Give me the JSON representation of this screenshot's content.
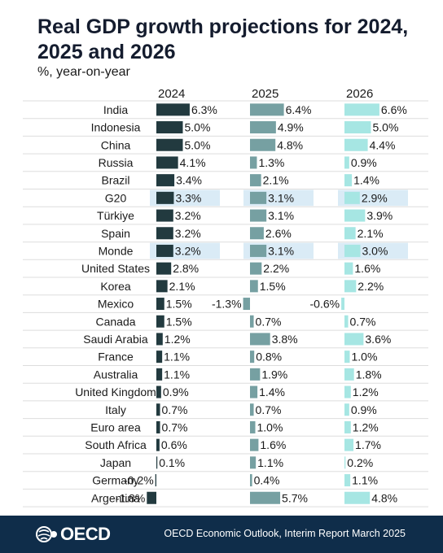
{
  "title": "Real GDP growth projections for 2024, 2025 and 2026",
  "subtitle": "%, year-on-year",
  "footer": {
    "logo_text": "OECD",
    "source": "OECD Economic Outlook, Interim Report March 2025"
  },
  "colors": {
    "series_2024": "#223a3f",
    "series_2025": "#76a0a2",
    "series_2026": "#a6e6e3",
    "highlight": "#daebf6",
    "gridline": "#dddddd",
    "footer_bg": "#0f2d4a"
  },
  "chart_data": {
    "type": "bar",
    "orientation": "horizontal",
    "unit": "%",
    "highlighted_categories": [
      "G20",
      "Monde"
    ],
    "categories": [
      "India",
      "Indonesia",
      "China",
      "Russia",
      "Brazil",
      "G20",
      "Türkiye",
      "Spain",
      "Monde",
      "United States",
      "Korea",
      "Mexico",
      "Canada",
      "Saudi Arabia",
      "France",
      "Australia",
      "United Kingdom",
      "Italy",
      "Euro area",
      "South Africa",
      "Japan",
      "Germany",
      "Argentina"
    ],
    "series": [
      {
        "name": "2024",
        "values": [
          6.3,
          5.0,
          5.0,
          4.1,
          3.4,
          3.3,
          3.2,
          3.2,
          3.2,
          2.8,
          2.1,
          1.5,
          1.5,
          1.2,
          1.1,
          1.1,
          0.9,
          0.7,
          0.7,
          0.6,
          0.1,
          -0.2,
          -1.8
        ],
        "labels": [
          "6.3%",
          "5.0%",
          "5.0%",
          "4.1%",
          "3.4%",
          "3.3%",
          "3.2%",
          "3.2%",
          "3.2%",
          "2.8%",
          "2.1%",
          "1.5%",
          "1.5%",
          "1.2%",
          "1.1%",
          "1.1%",
          "0.9%",
          "0.7%",
          "0.7%",
          "0.6%",
          "0.1%",
          "-0.2%",
          "-1.8%"
        ]
      },
      {
        "name": "2025",
        "values": [
          6.4,
          4.9,
          4.8,
          1.3,
          2.1,
          3.1,
          3.1,
          2.6,
          3.1,
          2.2,
          1.5,
          -1.3,
          0.7,
          3.8,
          0.8,
          1.9,
          1.4,
          0.7,
          1.0,
          1.6,
          1.1,
          0.4,
          5.7
        ],
        "labels": [
          "6.4%",
          "4.9%",
          "4.8%",
          "1.3%",
          "2.1%",
          "3.1%",
          "3.1%",
          "2.6%",
          "3.1%",
          "2.2%",
          "1.5%",
          "-1.3%",
          "0.7%",
          "3.8%",
          "0.8%",
          "1.9%",
          "1.4%",
          "0.7%",
          "1.0%",
          "1.6%",
          "1.1%",
          "0.4%",
          "5.7%"
        ]
      },
      {
        "name": "2026",
        "values": [
          6.6,
          5.0,
          4.4,
          0.9,
          1.4,
          2.9,
          3.9,
          2.1,
          3.0,
          1.6,
          2.2,
          -0.6,
          0.7,
          3.6,
          1.0,
          1.8,
          1.2,
          0.9,
          1.2,
          1.7,
          0.2,
          1.1,
          4.8
        ],
        "labels": [
          "6.6%",
          "5.0%",
          "4.4%",
          "0.9%",
          "1.4%",
          "2.9%",
          "3.9%",
          "2.1%",
          "3.0%",
          "1.6%",
          "2.2%",
          "-0.6%",
          "0.7%",
          "3.6%",
          "1.0%",
          "1.8%",
          "1.2%",
          "0.9%",
          "1.2%",
          "1.7%",
          "0.2%",
          "1.1%",
          "4.8%"
        ]
      }
    ]
  }
}
